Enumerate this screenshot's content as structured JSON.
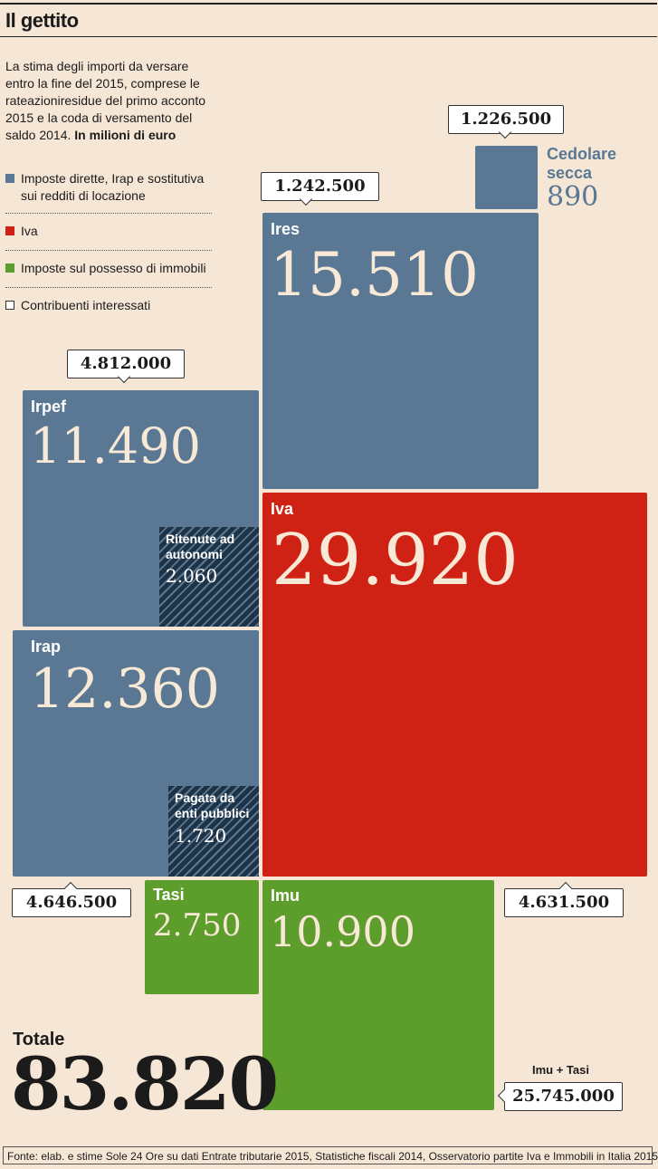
{
  "header": {
    "title": "Il gettito",
    "description": "La stima degli importi da versare entro la fine del 2015, comprese le rateazioniresidue del primo acconto 2015 e la coda di versamento del saldo 2014.",
    "description_bold": "In milioni di euro"
  },
  "legend": [
    {
      "label": "Imposte dirette, Irap e sostitutiva sui redditi di locazione",
      "color": "#5a7894"
    },
    {
      "label": "Iva",
      "color": "#d02214"
    },
    {
      "label": "Imposte sul possesso di immobili",
      "color": "#5d9d2b"
    },
    {
      "label": "Contribuenti interessati",
      "color": "#ffffff"
    }
  ],
  "chart_data": {
    "type": "treemap",
    "unit": "milioni di euro",
    "items": [
      {
        "name": "Cedolare secca",
        "value": 890,
        "category": "Imposte dirette, Irap e sostitutiva sui redditi di locazione",
        "contribuenti": "1.226.500"
      },
      {
        "name": "Ires",
        "value": 15510,
        "category": "Imposte dirette, Irap e sostitutiva sui redditi di locazione",
        "contribuenti": "1.242.500"
      },
      {
        "name": "Irpef",
        "value": 11490,
        "category": "Imposte dirette, Irap e sostitutiva sui redditi di locazione",
        "contribuenti": "4.812.000"
      },
      {
        "name": "Ritenute ad autonomi",
        "value": 2060,
        "parent": "Irpef"
      },
      {
        "name": "Iva",
        "value": 29920,
        "category": "Iva",
        "contribuenti": "4.631.500"
      },
      {
        "name": "Irap",
        "value": 12360,
        "category": "Imposte dirette, Irap e sostitutiva sui redditi di locazione",
        "contribuenti": "4.646.500"
      },
      {
        "name": "Pagata da enti pubblici",
        "value": 1720,
        "parent": "Irap"
      },
      {
        "name": "Tasi",
        "value": 2750,
        "category": "Imposte sul possesso di immobili"
      },
      {
        "name": "Imu",
        "value": 10900,
        "category": "Imposte sul possesso di immobili"
      }
    ],
    "combined": {
      "label": "Imu + Tasi",
      "contribuenti": "25.745.000"
    },
    "total": {
      "label": "Totale",
      "value": 83820
    }
  },
  "display": {
    "cedolare_name": "Cedolare secca",
    "cedolare_val": "890",
    "cedolare_calls": "1.226.500",
    "ires_name": "Ires",
    "ires_val": "15.510",
    "ires_calls": "1.242.500",
    "irpef_name": "Irpef",
    "irpef_val": "11.490",
    "irpef_calls": "4.812.000",
    "ritenute_label": "Ritenute ad autonomi",
    "ritenute_val": "2.060",
    "iva_name": "Iva",
    "iva_val": "29.920",
    "iva_calls": "4.631.500",
    "irap_name": "Irap",
    "irap_val": "12.360",
    "irap_calls": "4.646.500",
    "enti_label": "Pagata da enti pubblici",
    "enti_val": "1.720",
    "tasi_name": "Tasi",
    "tasi_val": "2.750",
    "imu_name": "Imu",
    "imu_val": "10.900",
    "imutasi_label": "Imu + Tasi",
    "imutasi_calls": "25.745.000",
    "total_label": "Totale",
    "total_val": "83.820"
  },
  "footer": {
    "source": "Fonte: elab. e stime Sole 24 Ore su dati Entrate tributarie 2015, Statistiche fiscali 2014, Osservatorio partite Iva e Immobili in Italia 2015"
  }
}
